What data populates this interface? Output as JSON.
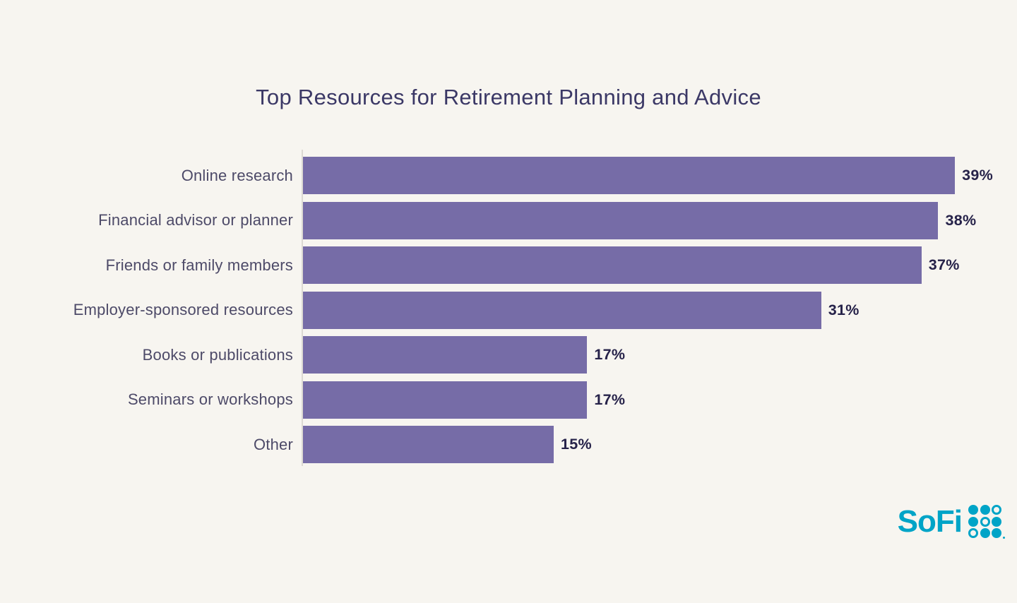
{
  "page": {
    "background": "#F7F5F0"
  },
  "chart_data": {
    "type": "bar",
    "orientation": "horizontal",
    "title": "Top Resources for Retirement Planning and Advice",
    "categories": [
      "Online research",
      "Financial advisor or planner",
      "Friends or family members",
      "Employer-sponsored resources",
      "Books or publications",
      "Seminars or workshops",
      "Other"
    ],
    "values": [
      39,
      38,
      37,
      31,
      17,
      17,
      15
    ],
    "value_labels": [
      "39%",
      "38%",
      "37%",
      "31%",
      "17%",
      "17%",
      "15%"
    ],
    "value_suffix": "%",
    "xlim": [
      0,
      40
    ],
    "grid": false,
    "legend": false,
    "bar_color": "#766CA7",
    "title_color": "#3B3866",
    "category_label_color": "#4D4A68",
    "value_label_color": "#262249",
    "axis_line_color": "#DCD9D3"
  },
  "branding": {
    "logo_text": "SoFi",
    "logo_color": "#00A4C7",
    "logo_dots_icon": "sofi-dot-grid",
    "logo_dot_pattern": [
      "filled",
      "filled",
      "outline",
      "filled",
      "outline",
      "filled",
      "outline",
      "filled",
      "filled"
    ]
  }
}
